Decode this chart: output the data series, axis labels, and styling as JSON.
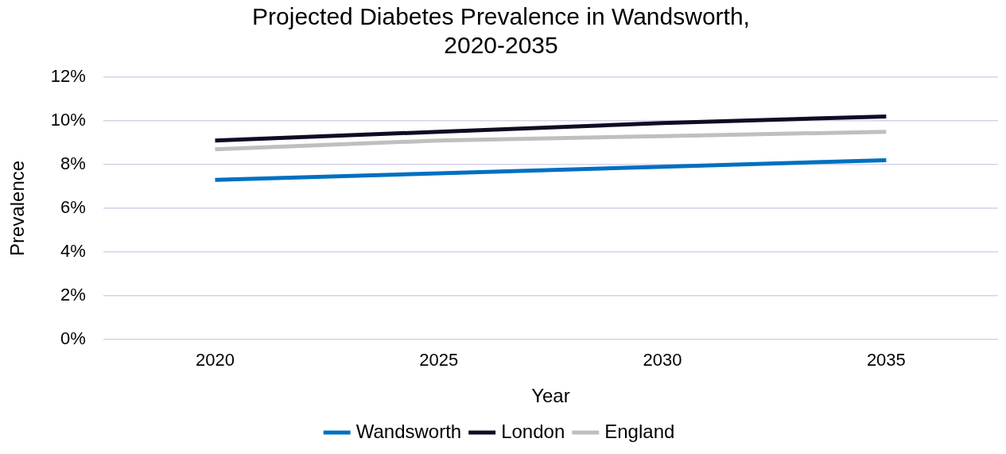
{
  "chart_data": {
    "type": "line",
    "title": "Projected Diabetes Prevalence in Wandsworth, 2020-2035",
    "xlabel": "Year",
    "ylabel": "Prevalence",
    "categories": [
      "2020",
      "2025",
      "2030",
      "2035"
    ],
    "series": [
      {
        "name": "Wandsworth",
        "color": "#0070c0",
        "values": [
          7.3,
          7.6,
          7.9,
          8.2
        ]
      },
      {
        "name": "London",
        "color": "#0f0c24",
        "values": [
          9.1,
          9.5,
          9.9,
          10.2
        ]
      },
      {
        "name": "England",
        "color": "#bfbfbf",
        "values": [
          8.7,
          9.1,
          9.3,
          9.5
        ]
      }
    ],
    "ylim": [
      0,
      12
    ],
    "yticks": [
      {
        "value": 0,
        "label": "0%"
      },
      {
        "value": 2,
        "label": "2%"
      },
      {
        "value": 4,
        "label": "4%"
      },
      {
        "value": 6,
        "label": "6%"
      },
      {
        "value": 8,
        "label": "8%"
      },
      {
        "value": 10,
        "label": "10%"
      },
      {
        "value": 12,
        "label": "12%"
      }
    ],
    "grid": "y",
    "legend": "bottom",
    "marker": "none",
    "line_style": "solid"
  }
}
